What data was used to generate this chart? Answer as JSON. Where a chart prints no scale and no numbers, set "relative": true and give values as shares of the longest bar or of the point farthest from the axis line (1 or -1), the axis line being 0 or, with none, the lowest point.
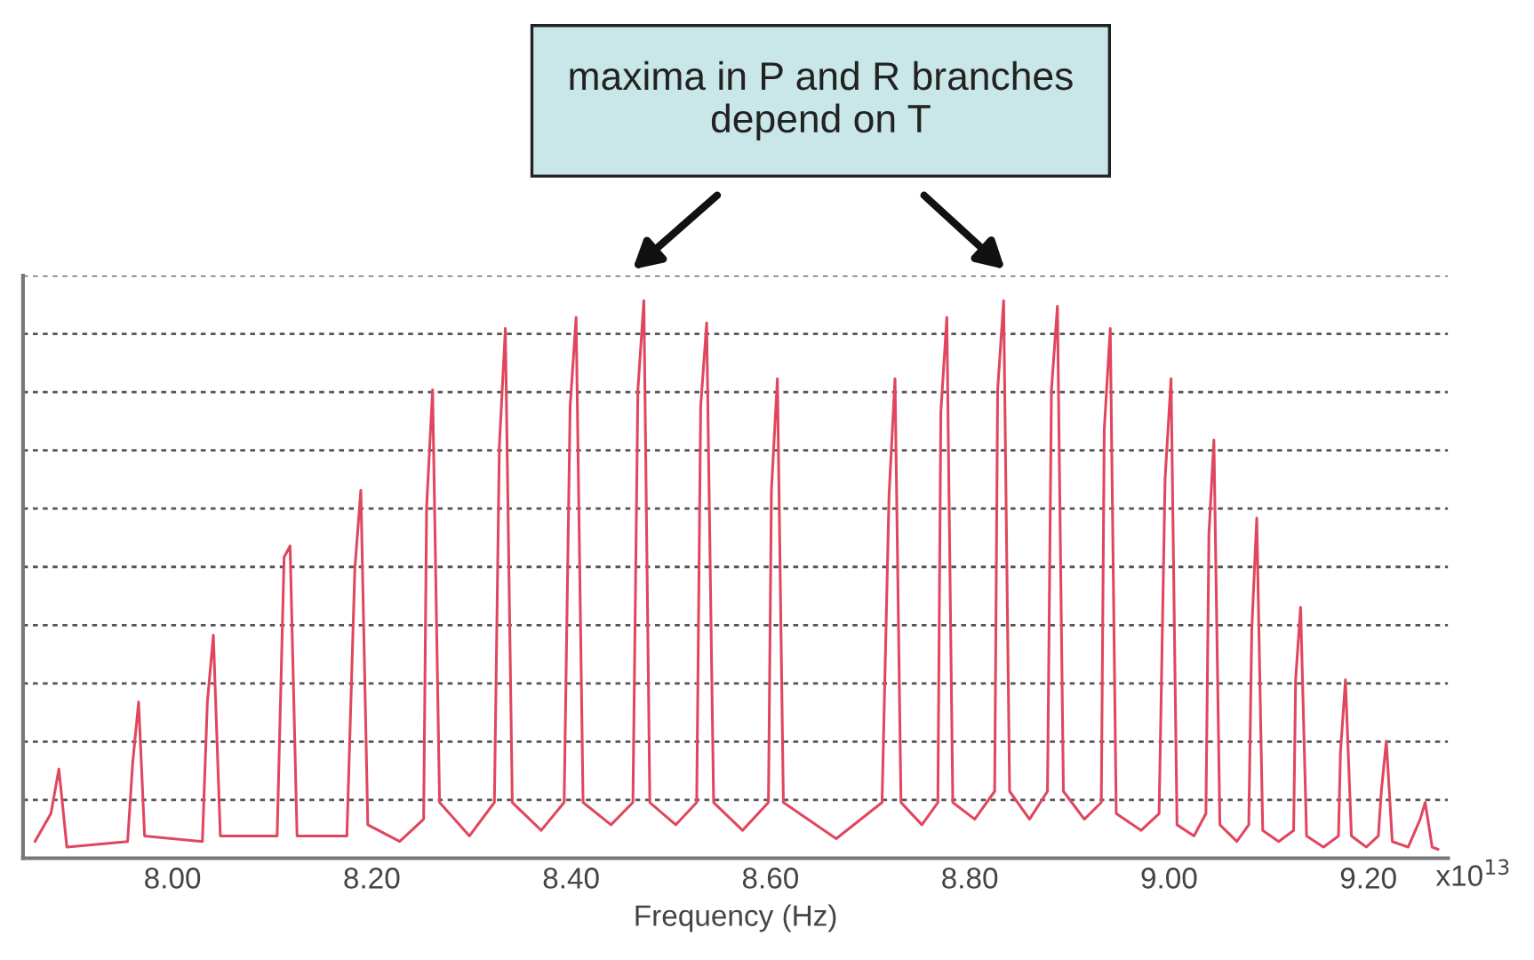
{
  "chart_data": {
    "type": "line",
    "relative": true,
    "xlabel": "Frequency (Hz)",
    "xlim": [
      7.85,
      9.28
    ],
    "xticks": [
      {
        "value": 8.0,
        "label": "8.00"
      },
      {
        "value": 8.2,
        "label": "8.20"
      },
      {
        "value": 8.4,
        "label": "8.40"
      },
      {
        "value": 8.6,
        "label": "8.60"
      },
      {
        "value": 8.8,
        "label": "8.80"
      },
      {
        "value": 9.0,
        "label": "9.00"
      },
      {
        "value": 9.2,
        "label": "9.20"
      }
    ],
    "annotations": [
      "maxima in P and R branches\ndepend on T",
      "x10$^{13}$"
    ],
    "grid": "y",
    "tick_labels": "x",
    "marker": "none",
    "line_style": "solid",
    "series": [
      {
        "color": "#e0475f",
        "x": [
          7.862,
          7.878,
          7.886,
          7.894,
          7.955,
          7.96,
          7.966,
          7.972,
          8.03,
          8.035,
          8.041,
          8.048,
          8.105,
          8.112,
          8.118,
          8.125,
          8.175,
          8.183,
          8.189,
          8.196,
          8.228,
          8.252,
          8.255,
          8.261,
          8.268,
          8.298,
          8.323,
          8.328,
          8.334,
          8.341,
          8.37,
          8.393,
          8.399,
          8.405,
          8.412,
          8.44,
          8.462,
          8.467,
          8.473,
          8.479,
          8.505,
          8.526,
          8.53,
          8.536,
          8.543,
          8.572,
          8.598,
          8.601,
          8.607,
          8.613,
          8.666,
          8.712,
          8.719,
          8.725,
          8.731,
          8.752,
          8.768,
          8.771,
          8.777,
          8.783,
          8.805,
          8.825,
          8.828,
          8.834,
          8.84,
          8.86,
          8.878,
          8.882,
          8.888,
          8.894,
          8.915,
          8.932,
          8.935,
          8.941,
          8.947,
          8.972,
          8.99,
          8.996,
          9.002,
          9.008,
          9.025,
          9.037,
          9.04,
          9.045,
          9.051,
          9.068,
          9.08,
          9.083,
          9.088,
          9.094,
          9.11,
          9.125,
          9.127,
          9.132,
          9.138,
          9.155,
          9.17,
          9.172,
          9.177,
          9.183,
          9.198,
          9.21,
          9.213,
          9.218,
          9.224,
          9.24,
          9.252,
          9.257,
          9.264,
          9.27
        ],
        "values": [
          0.03,
          0.08,
          0.16,
          0.02,
          0.03,
          0.17,
          0.28,
          0.04,
          0.03,
          0.28,
          0.4,
          0.04,
          0.04,
          0.54,
          0.56,
          0.04,
          0.04,
          0.52,
          0.66,
          0.06,
          0.03,
          0.07,
          0.63,
          0.84,
          0.1,
          0.04,
          0.1,
          0.74,
          0.95,
          0.1,
          0.05,
          0.1,
          0.81,
          0.97,
          0.1,
          0.06,
          0.1,
          0.84,
          1.0,
          0.1,
          0.06,
          0.1,
          0.81,
          0.96,
          0.1,
          0.05,
          0.1,
          0.66,
          0.86,
          0.1,
          0.035,
          0.1,
          0.65,
          0.86,
          0.1,
          0.06,
          0.1,
          0.8,
          0.97,
          0.1,
          0.07,
          0.12,
          0.84,
          1.0,
          0.12,
          0.07,
          0.12,
          0.84,
          0.99,
          0.12,
          0.07,
          0.1,
          0.77,
          0.95,
          0.08,
          0.05,
          0.08,
          0.68,
          0.86,
          0.06,
          0.04,
          0.08,
          0.58,
          0.75,
          0.06,
          0.03,
          0.06,
          0.41,
          0.61,
          0.05,
          0.03,
          0.05,
          0.32,
          0.45,
          0.04,
          0.02,
          0.04,
          0.19,
          0.32,
          0.04,
          0.02,
          0.04,
          0.12,
          0.21,
          0.03,
          0.02,
          0.07,
          0.1,
          0.02,
          0.016
        ]
      }
    ]
  }
}
